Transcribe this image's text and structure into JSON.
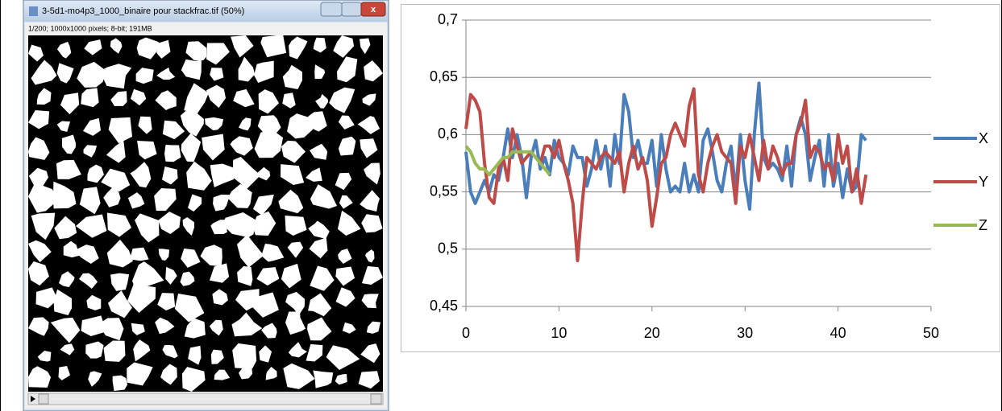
{
  "window": {
    "title": "3-5d1-mo4p3_1000_binaire pour stackfrac.tif (50%)",
    "info": "1/200; 1000x1000 pixels; 8-bit; 191MB"
  },
  "chart_data": {
    "type": "line",
    "xlim": [
      0,
      50
    ],
    "xticks": [
      0,
      10,
      20,
      30,
      40,
      50
    ],
    "ylim": [
      0.45,
      0.7
    ],
    "yticks": [
      {
        "value": 0.45,
        "label": "0,45"
      },
      {
        "value": 0.5,
        "label": "0,5"
      },
      {
        "value": 0.55,
        "label": "0,55"
      },
      {
        "value": 0.6,
        "label": "0,6"
      },
      {
        "value": 0.65,
        "label": "0,65"
      },
      {
        "value": 0.7,
        "label": "0,7"
      }
    ],
    "grid": true,
    "legend": "right",
    "series": [
      {
        "name": "X",
        "color": "#4a7ebb",
        "x": [
          0,
          0.5,
          1,
          1.5,
          2,
          2.5,
          3,
          3.5,
          4,
          4.5,
          5,
          5.5,
          6,
          6.5,
          7,
          7.5,
          8,
          8.5,
          9,
          9.5,
          10,
          10.5,
          11,
          11.5,
          12,
          12.5,
          13,
          13.5,
          14,
          14.5,
          15,
          15.5,
          16,
          16.5,
          17,
          17.5,
          18,
          18.5,
          19,
          19.5,
          20,
          20.5,
          21,
          21.5,
          22,
          22.5,
          23,
          23.5,
          24,
          24.5,
          25,
          25.5,
          26,
          26.5,
          27,
          27.5,
          28,
          28.5,
          29,
          29.5,
          30,
          30.5,
          31,
          31.5,
          32,
          32.5,
          33,
          33.5,
          34,
          34.5,
          35,
          35.5,
          36,
          36.5,
          37,
          37.5,
          38,
          38.5,
          39,
          39.5,
          40,
          40.5,
          41,
          41.5,
          42,
          42.5,
          43
        ],
        "values": [
          0.585,
          0.55,
          0.54,
          0.55,
          0.56,
          0.55,
          0.565,
          0.56,
          0.58,
          0.605,
          0.58,
          0.6,
          0.58,
          0.545,
          0.58,
          0.595,
          0.57,
          0.58,
          0.565,
          0.595,
          0.58,
          0.575,
          0.565,
          0.59,
          0.58,
          0.58,
          0.555,
          0.57,
          0.595,
          0.57,
          0.59,
          0.555,
          0.6,
          0.575,
          0.635,
          0.62,
          0.58,
          0.595,
          0.575,
          0.575,
          0.595,
          0.555,
          0.6,
          0.57,
          0.55,
          0.555,
          0.55,
          0.575,
          0.55,
          0.565,
          0.55,
          0.595,
          0.605,
          0.585,
          0.56,
          0.55,
          0.575,
          0.59,
          0.55,
          0.6,
          0.56,
          0.535,
          0.6,
          0.645,
          0.58,
          0.57,
          0.575,
          0.57,
          0.56,
          0.59,
          0.555,
          0.6,
          0.615,
          0.6,
          0.56,
          0.58,
          0.595,
          0.555,
          0.6,
          0.555,
          0.575,
          0.545,
          0.57,
          0.55,
          0.555,
          0.6,
          0.595
        ]
      },
      {
        "name": "Y",
        "color": "#be4b48",
        "x": [
          0,
          0.5,
          1,
          1.5,
          2,
          2.5,
          3,
          3.5,
          4,
          4.5,
          5,
          5.5,
          6,
          6.5,
          7,
          7.5,
          8,
          8.5,
          9,
          9.5,
          10,
          10.5,
          11,
          11.5,
          12,
          12.5,
          13,
          13.5,
          14,
          14.5,
          15,
          15.5,
          16,
          16.5,
          17,
          17.5,
          18,
          18.5,
          19,
          19.5,
          20,
          20.5,
          21,
          21.5,
          22,
          22.5,
          23,
          23.5,
          24,
          24.5,
          25,
          25.5,
          26,
          26.5,
          27,
          27.5,
          28,
          28.5,
          29,
          29.5,
          30,
          30.5,
          31,
          31.5,
          32,
          32.5,
          33,
          33.5,
          34,
          34.5,
          35,
          35.5,
          36,
          36.5,
          37,
          37.5,
          38,
          38.5,
          39,
          39.5,
          40,
          40.5,
          41,
          41.5,
          42,
          42.5,
          43
        ],
        "values": [
          0.605,
          0.635,
          0.63,
          0.62,
          0.575,
          0.545,
          0.54,
          0.57,
          0.58,
          0.56,
          0.605,
          0.59,
          0.575,
          0.58,
          0.585,
          0.58,
          0.575,
          0.59,
          0.59,
          0.58,
          0.595,
          0.575,
          0.56,
          0.54,
          0.49,
          0.54,
          0.58,
          0.575,
          0.57,
          0.58,
          0.585,
          0.58,
          0.575,
          0.585,
          0.55,
          0.575,
          0.59,
          0.57,
          0.58,
          0.56,
          0.52,
          0.545,
          0.575,
          0.58,
          0.6,
          0.61,
          0.6,
          0.59,
          0.625,
          0.64,
          0.565,
          0.55,
          0.575,
          0.59,
          0.6,
          0.585,
          0.58,
          0.575,
          0.54,
          0.59,
          0.58,
          0.6,
          0.58,
          0.56,
          0.595,
          0.57,
          0.59,
          0.58,
          0.565,
          0.575,
          0.575,
          0.6,
          0.61,
          0.63,
          0.58,
          0.59,
          0.585,
          0.57,
          0.575,
          0.56,
          0.6,
          0.575,
          0.59,
          0.55,
          0.57,
          0.54,
          0.565
        ]
      },
      {
        "name": "Z",
        "color": "#98b954",
        "x": [
          0,
          0.5,
          1,
          1.5,
          2,
          2.5,
          3,
          3.5,
          4,
          4.5,
          5,
          5.5,
          6,
          6.5,
          7,
          7.5,
          8,
          8.5,
          9
        ],
        "values": [
          0.59,
          0.585,
          0.575,
          0.57,
          0.57,
          0.565,
          0.57,
          0.575,
          0.58,
          0.58,
          0.585,
          0.585,
          0.585,
          0.585,
          0.585,
          0.58,
          0.575,
          0.57,
          0.565
        ]
      }
    ]
  }
}
